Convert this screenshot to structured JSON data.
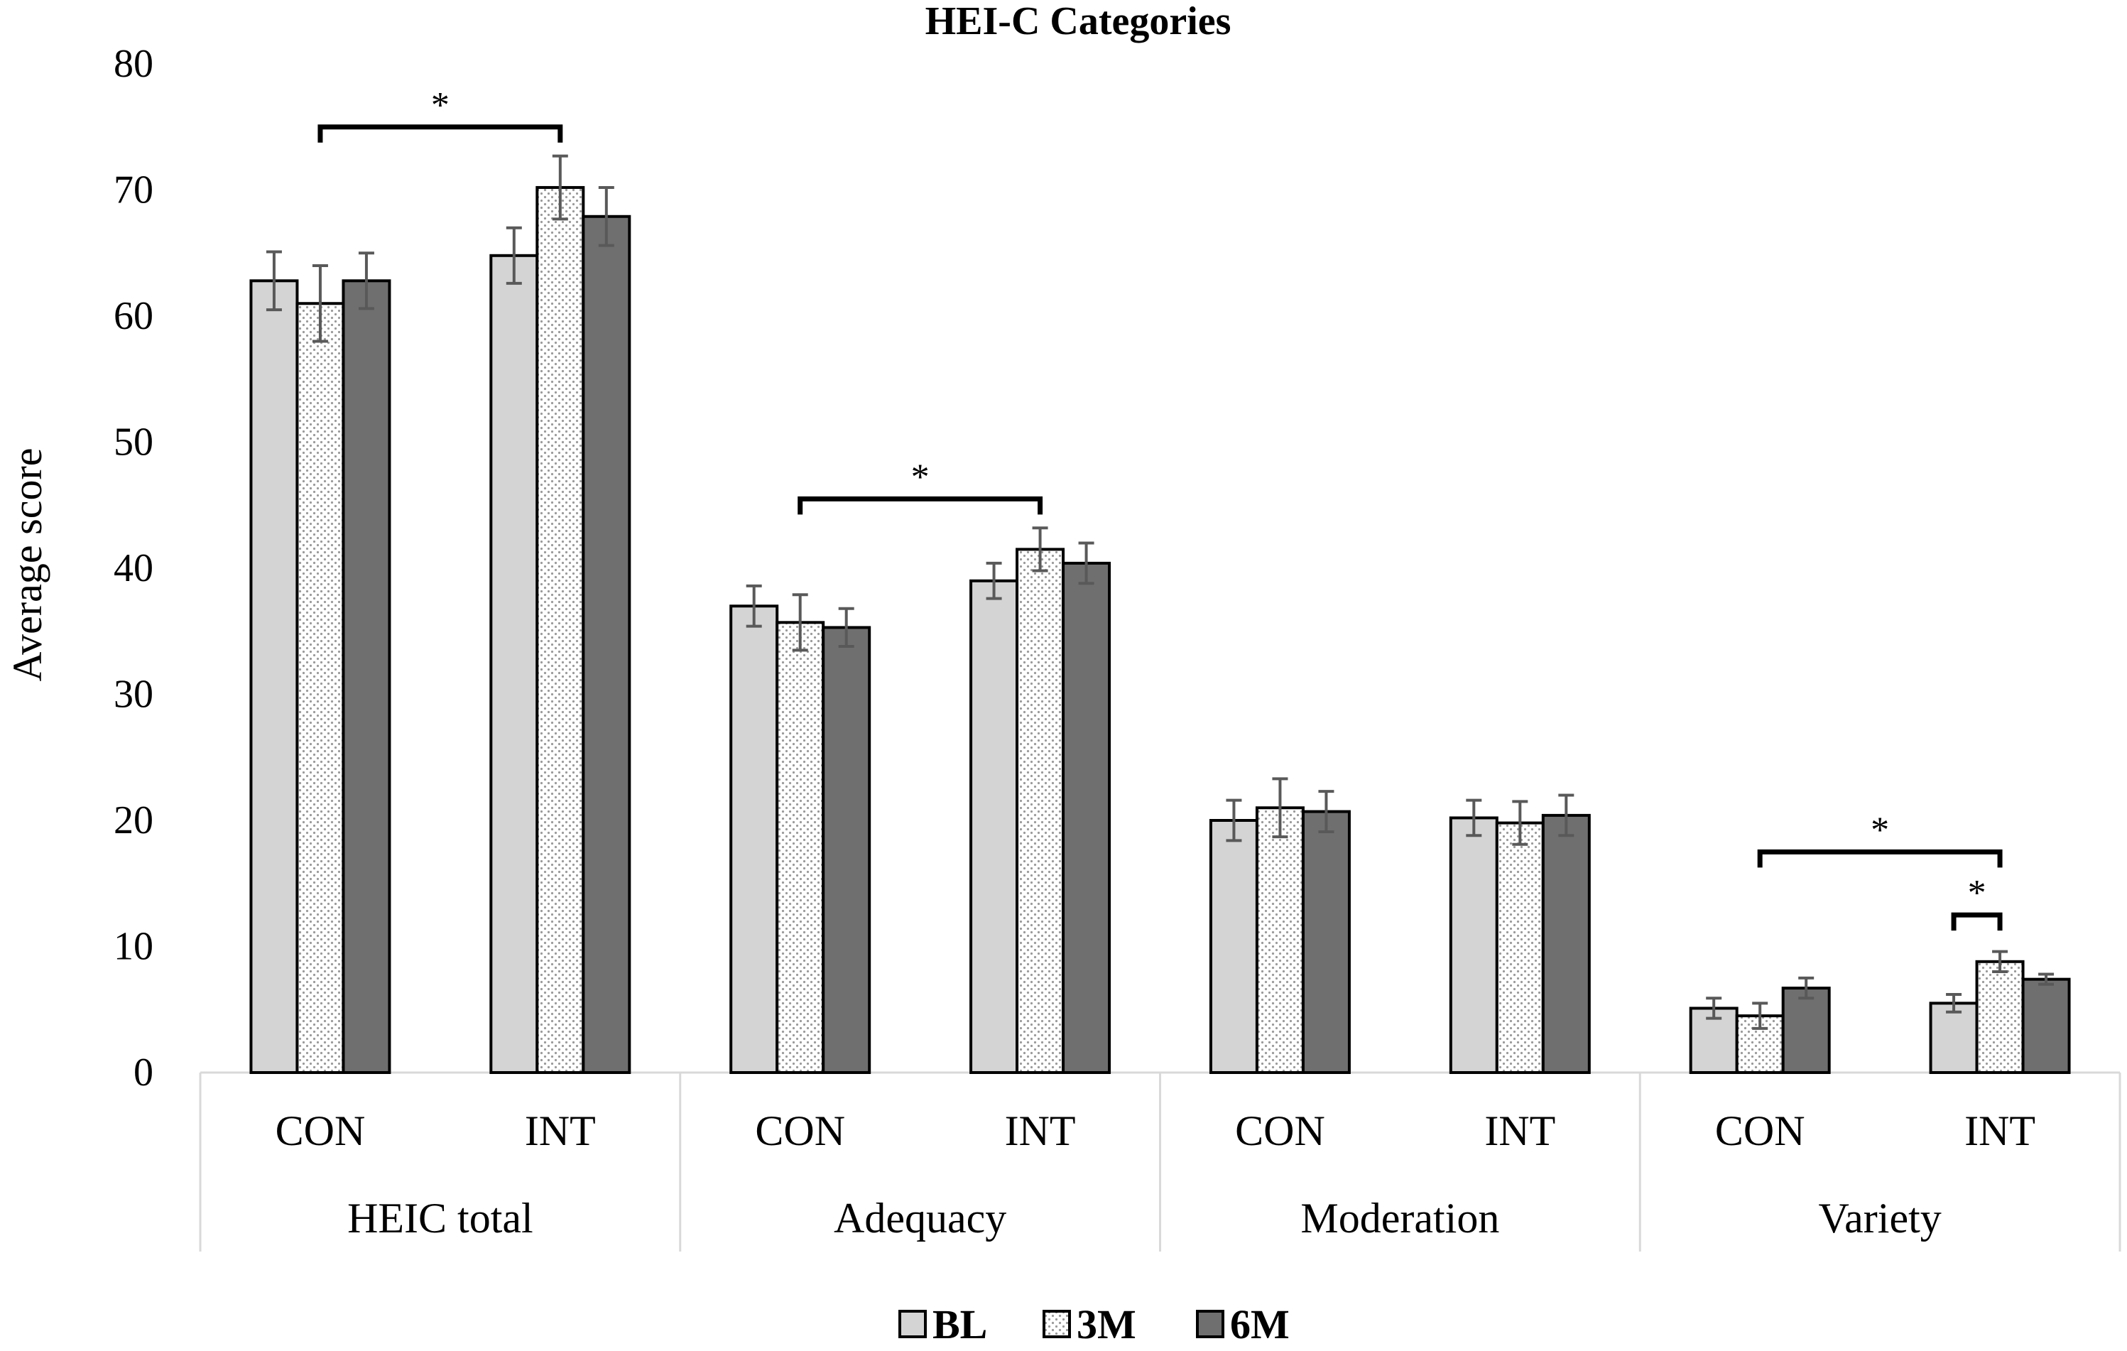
{
  "chart_data": {
    "type": "bar",
    "title": "HEI-C Categories",
    "ylabel": "Average score",
    "xlabel": "",
    "ylim": [
      0,
      80
    ],
    "yticks": [
      "0",
      "10",
      "20",
      "30",
      "40",
      "50",
      "60",
      "70",
      "80"
    ],
    "groups": [
      {
        "label": "HEIC total",
        "subcategories": [
          "CON",
          "INT"
        ]
      },
      {
        "label": "Adequacy",
        "subcategories": [
          "CON",
          "INT"
        ]
      },
      {
        "label": "Moderation",
        "subcategories": [
          "CON",
          "INT"
        ]
      },
      {
        "label": "Variety",
        "subcategories": [
          "CON",
          "INT"
        ]
      }
    ],
    "categories": [
      "HEIC total CON",
      "HEIC total INT",
      "Adequacy CON",
      "Adequacy INT",
      "Moderation CON",
      "Moderation INT",
      "Variety CON",
      "Variety INT"
    ],
    "series": [
      {
        "name": "BL",
        "values": [
          62.8,
          64.8,
          37.0,
          39.0,
          20.0,
          20.2,
          5.1,
          5.5
        ],
        "errors": [
          2.3,
          2.2,
          1.6,
          1.4,
          1.6,
          1.4,
          0.8,
          0.7
        ]
      },
      {
        "name": "3M",
        "values": [
          61.0,
          70.2,
          35.7,
          41.5,
          21.0,
          19.8,
          4.5,
          8.8
        ],
        "errors": [
          3.0,
          2.5,
          2.2,
          1.7,
          2.3,
          1.7,
          1.0,
          0.8
        ]
      },
      {
        "name": "6M",
        "values": [
          62.8,
          67.9,
          35.3,
          40.4,
          20.7,
          20.4,
          6.7,
          7.4
        ],
        "errors": [
          2.2,
          2.3,
          1.5,
          1.6,
          1.6,
          1.6,
          0.8,
          0.4
        ]
      }
    ],
    "legend": {
      "position": "bottom",
      "entries": [
        "BL",
        "3M",
        "6M"
      ]
    },
    "annotations": [
      {
        "text": "*",
        "from_category": 0,
        "to_category": 1,
        "level": 75
      },
      {
        "text": "*",
        "from_category": 2,
        "to_category": 3,
        "level": 45.5
      },
      {
        "text": "*",
        "from_category": 6,
        "to_category": 7,
        "level": 17.5
      },
      {
        "text": "*",
        "from_category": 7,
        "from_series": 0,
        "to_category": 7,
        "level": 12.5
      }
    ],
    "colors": {
      "BL": "#d4d4d4",
      "3M": "#ffffff",
      "6M": "#6f6f6f",
      "error": "#595959",
      "axis": "#d9d9d9"
    }
  }
}
